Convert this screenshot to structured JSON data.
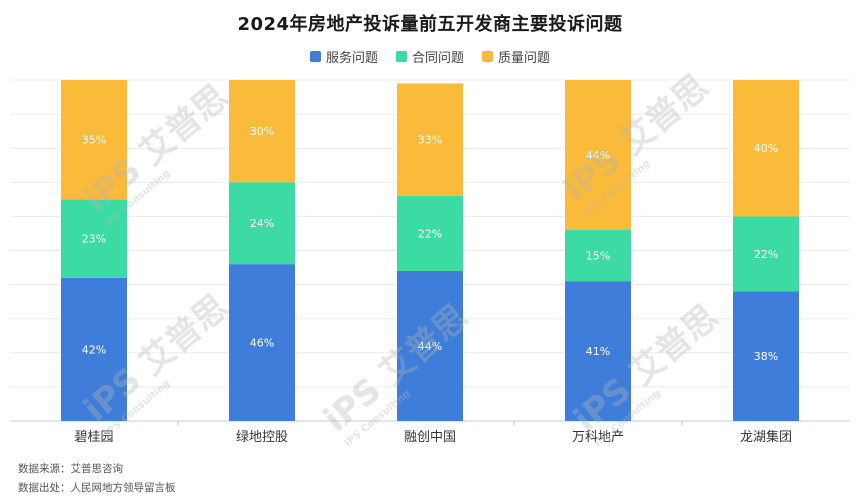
{
  "chart_data": {
    "type": "bar",
    "stacked": true,
    "percent_stacked": true,
    "title": "2024年房地产投诉量前五开发商主要投诉问题",
    "categories": [
      "碧桂园",
      "绿地控股",
      "融创中国",
      "万科地产",
      "龙湖集团"
    ],
    "series": [
      {
        "name": "服务问题",
        "color": "#3f7ddb",
        "values": [
          42,
          46,
          44,
          41,
          38
        ]
      },
      {
        "name": "合同问题",
        "color": "#3ddba4",
        "values": [
          23,
          24,
          22,
          15,
          22
        ]
      },
      {
        "name": "质量问题",
        "color": "#fbbb3a",
        "values": [
          35,
          30,
          33,
          44,
          40
        ]
      }
    ],
    "value_suffix": "%",
    "ylim": [
      0,
      100
    ],
    "grid": true,
    "legend_position": "top"
  },
  "footnotes": {
    "source": "数据来源：艾普思咨询",
    "origin": "数据出处：人民网地方领导留言板"
  },
  "watermark": {
    "brand": "艾普思",
    "logo": "iPS",
    "sub": "IPS Consulting"
  }
}
